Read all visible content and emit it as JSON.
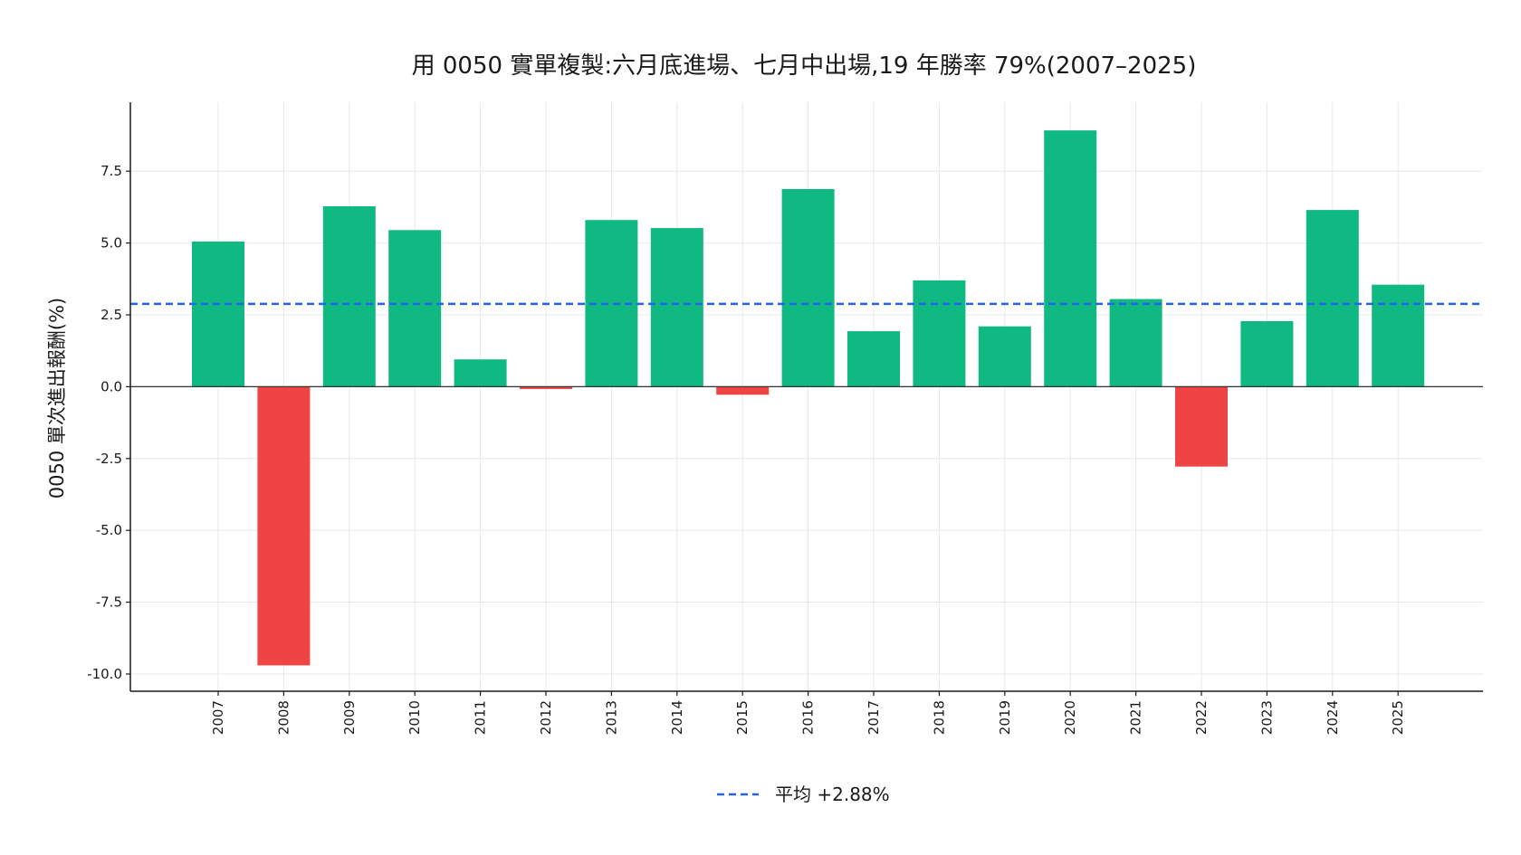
{
  "chart_data": {
    "type": "bar",
    "title": "用 0050 實單複製:六月底進場、七月中出場,19 年勝率 79%(2007–2025)",
    "xlabel": "",
    "ylabel": "0050 單次進出報酬(%)",
    "categories": [
      "2007",
      "2008",
      "2009",
      "2010",
      "2011",
      "2012",
      "2013",
      "2014",
      "2015",
      "2016",
      "2017",
      "2018",
      "2019",
      "2020",
      "2021",
      "2022",
      "2023",
      "2024",
      "2025"
    ],
    "values": [
      5.05,
      -9.7,
      6.28,
      5.45,
      0.95,
      -0.08,
      5.8,
      5.52,
      -0.28,
      6.88,
      1.93,
      3.7,
      2.1,
      8.92,
      3.05,
      -2.78,
      2.28,
      6.15,
      3.55
    ],
    "yticks": [
      -10.0,
      -7.5,
      -5.0,
      -2.5,
      0.0,
      2.5,
      5.0,
      7.5
    ],
    "ytick_labels": [
      "-10.0",
      "-7.5",
      "-5.0",
      "-2.5",
      "0.0",
      "2.5",
      "5.0",
      "7.5"
    ],
    "ylim": [
      -10.6,
      9.9
    ],
    "average": 2.88,
    "legend": {
      "label": "平均 +2.88%",
      "placement": "bottom-center"
    },
    "grid": true,
    "colors": {
      "positive": "#10b981",
      "negative": "#ef4444",
      "average_line": "#2563eb",
      "grid": "#e8e8e8",
      "axis": "#1a1a1a"
    }
  }
}
